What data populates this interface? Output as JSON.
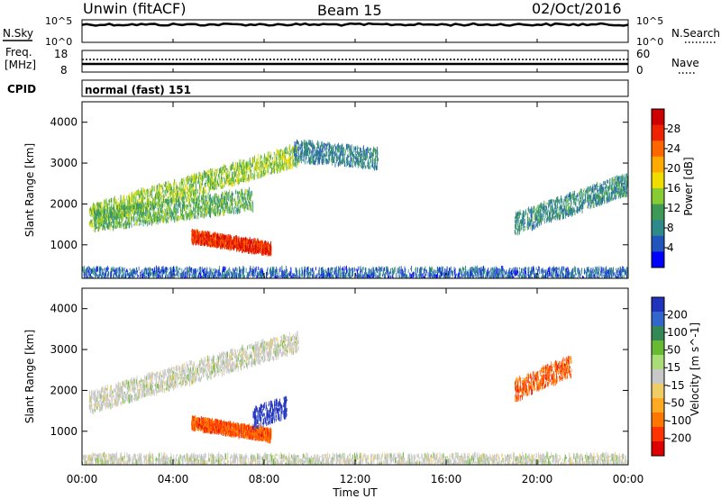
{
  "header": {
    "station": "Unwin (fitACF)",
    "beam": "Beam 15",
    "date": "02/Oct/2016"
  },
  "nsky_panel": {
    "label": "N.Sky",
    "ticks": [
      "10^5",
      "10^0"
    ],
    "right_ticks": [
      "10^5",
      "10^0"
    ],
    "right_label": "N.Search"
  },
  "freq_panel": {
    "label_line1": "Freq.",
    "label_line2": "[MHz]",
    "left_ticks": [
      "18",
      "8"
    ],
    "right_ticks": [
      "60",
      "0"
    ],
    "right_label": "Nave"
  },
  "cpid_panel": {
    "label": "CPID",
    "text": "normal (fast) 151"
  },
  "chart_data": [
    {
      "type": "heatmap",
      "title": "",
      "xlabel": "",
      "ylabel": "Slant Range [km]",
      "xlim": [
        0,
        24
      ],
      "ylim": [
        180,
        4500
      ],
      "y_ticks": [
        1000,
        2000,
        3000,
        4000
      ],
      "colorbar": {
        "label": "Power [dB]",
        "ticks": [
          "4",
          "8",
          "12",
          "16",
          "20",
          "24",
          "28"
        ],
        "colors": [
          "#0000ff",
          "#2255bb",
          "#2e8a8a",
          "#3d9a55",
          "#88cc33",
          "#f0dd00",
          "#ffaa00",
          "#ff6600",
          "#ee2200",
          "#cc0000"
        ]
      },
      "features": [
        {
          "name": "ground-scatter-near",
          "time_start": 0.0,
          "time_end": 24.0,
          "range_km": 300,
          "power_db": 6
        },
        {
          "name": "echo-band-a",
          "time_start": 0.3,
          "time_end": 9.5,
          "range_start_km": 1700,
          "range_end_km": 3200,
          "power_db": 14
        },
        {
          "name": "echo-band-b",
          "time_start": 0.5,
          "time_end": 7.5,
          "range_start_km": 1600,
          "range_end_km": 2100,
          "power_db": 12
        },
        {
          "name": "strong-echo",
          "time_start": 4.8,
          "time_end": 8.3,
          "range_start_km": 1200,
          "range_end_km": 900,
          "power_db": 26
        },
        {
          "name": "echo-band-c",
          "time_start": 9.3,
          "time_end": 13.0,
          "range_start_km": 3300,
          "range_end_km": 3100,
          "power_db": 8
        },
        {
          "name": "echo-band-d",
          "time_start": 19.0,
          "time_end": 24.0,
          "range_start_km": 1500,
          "range_end_km": 2500,
          "power_db": 9
        }
      ]
    },
    {
      "type": "heatmap",
      "title": "",
      "xlabel": "Time UT",
      "ylabel": "Slant Range [km]",
      "xlim": [
        0,
        24
      ],
      "ylim": [
        180,
        4500
      ],
      "x_ticks": [
        "00:00",
        "04:00",
        "08:00",
        "12:00",
        "16:00",
        "20:00",
        "00:00"
      ],
      "y_ticks": [
        1000,
        2000,
        3000,
        4000
      ],
      "colorbar": {
        "label": "Velocity [m s^-1]",
        "ticks": [
          "200",
          "100",
          "50",
          "15",
          "-15",
          "-50",
          "-100",
          "-200"
        ],
        "colors": [
          "#2233bb",
          "#3366cc",
          "#338855",
          "#66bb33",
          "#aadd77",
          "#c8c8c8",
          "#f0cc66",
          "#ffaa22",
          "#ff7700",
          "#ff3300",
          "#dd0000"
        ]
      },
      "features": [
        {
          "name": "ground-scatter-near",
          "time_start": 0.0,
          "time_end": 24.0,
          "range_km": 300,
          "velocity": 0
        },
        {
          "name": "echo-band-a",
          "time_start": 0.3,
          "time_end": 9.5,
          "range_start_km": 1700,
          "range_end_km": 3200,
          "velocity": 0
        },
        {
          "name": "strong-echo",
          "time_start": 4.8,
          "time_end": 8.3,
          "range_start_km": 1200,
          "range_end_km": 900,
          "velocity": -150
        },
        {
          "name": "blue-patch",
          "time_start": 7.5,
          "time_end": 9.0,
          "range_start_km": 1300,
          "range_end_km": 1600,
          "velocity": 200
        },
        {
          "name": "echo-band-d",
          "time_start": 19.0,
          "time_end": 21.5,
          "range_start_km": 2000,
          "range_end_km": 2600,
          "velocity": -150
        }
      ]
    }
  ]
}
